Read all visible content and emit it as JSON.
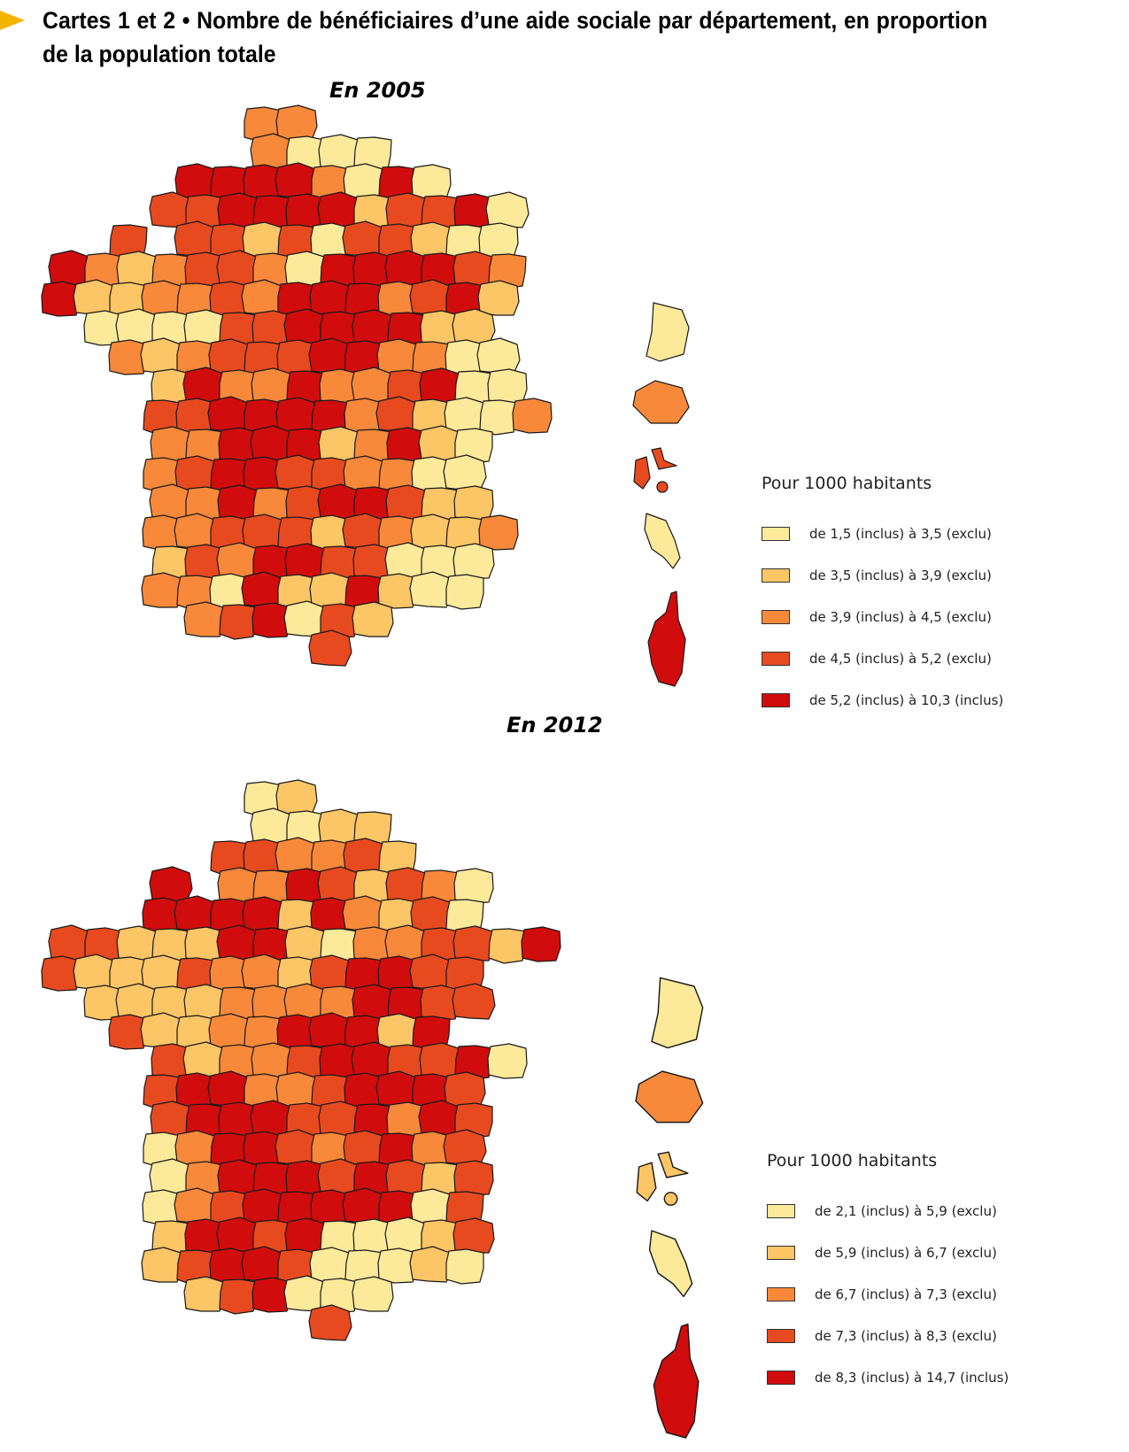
{
  "header": {
    "title": "Cartes 1 et 2 • Nombre de bénéficiaires d’une aide sociale par département, en proportion de la population totale",
    "arrow_color": "#f5b400"
  },
  "colors": [
    "#fde99a",
    "#fcc565",
    "#f8893a",
    "#e84a1f",
    "#d10c0c"
  ],
  "chart_data": [
    {
      "type": "choropleth",
      "title": "En 2005",
      "legend_title": "Pour 1000 habitants",
      "classes": [
        {
          "label": "de 1,5 (inclus) à 3,5 (exclu)",
          "min": 1.5,
          "max": 3.5,
          "color": "#fde99a"
        },
        {
          "label": "de 3,5 (inclus) à 3,9 (exclu)",
          "min": 3.5,
          "max": 3.9,
          "color": "#fcc565"
        },
        {
          "label": "de 3,9 (inclus) à 4,5 (exclu)",
          "min": 3.9,
          "max": 4.5,
          "color": "#f8893a"
        },
        {
          "label": "de 4,5 (inclus) à 5,2 (exclu)",
          "min": 4.5,
          "max": 5.2,
          "color": "#e84a1f"
        },
        {
          "label": "de 5,2 (inclus) à 10,3 (inclus)",
          "min": 5.2,
          "max": 10.3,
          "color": "#d10c0c"
        }
      ],
      "overseas": {
        "Guyane": 0,
        "La Réunion": 2,
        "Guadeloupe": 3,
        "Martinique": 0,
        "Corse": 4
      }
    },
    {
      "type": "choropleth",
      "title": "En 2012",
      "legend_title": "Pour 1000 habitants",
      "classes": [
        {
          "label": "de 2,1 (inclus) à 5,9 (exclu)",
          "min": 2.1,
          "max": 5.9,
          "color": "#fde99a"
        },
        {
          "label": "de 5,9 (inclus) à 6,7 (exclu)",
          "min": 5.9,
          "max": 6.7,
          "color": "#fcc565"
        },
        {
          "label": "de 6,7 (inclus) à 7,3 (exclu)",
          "min": 6.7,
          "max": 7.3,
          "color": "#f8893a"
        },
        {
          "label": "de 7,3 (inclus) à 8,3 (exclu)",
          "min": 7.3,
          "max": 8.3,
          "color": "#e84a1f"
        },
        {
          "label": "de 8,3 (inclus) à 14,7 (inclus)",
          "min": 8.3,
          "max": 14.7,
          "color": "#d10c0c"
        }
      ],
      "overseas": {
        "Guyane": 0,
        "La Réunion": 2,
        "Guadeloupe": 1,
        "Martinique": 0,
        "Corse": 4
      }
    }
  ],
  "maps": [
    {
      "grid": [
        "......22.........",
        "......2000.......",
        "....44442040.....",
        "...33444413340...",
        "..3.3313033100...",
        "42123320444432...",
        "41122324442341...",
        ".000033444411....",
        "..212333442200...",
        "...14224223400...",
        "...334444231002..",
        "...2244412410....",
        "...2344332200....",
        "...2242344311....",
        "...22333132112...",
        "...1324433000....",
        "...2204114100....",
        "....234031.......",
        "........3........"
      ]
    },
    {
      "grid": [
        "......01.........",
        "......0011.......",
        ".....332231......",
        "...4.22431320....",
        "...4444142130....",
        "331114410223314..",
        "3111322134433....",
        ".111122224433....",
        "..3112244414.....",
        "...31223443340...",
        "...3442234443....",
        "...3444334243....",
        "...0244323423....",
        "...0244434313....",
        "...0234444403....",
        "...1443400013....",
        "...1344300010....",
        "....134000.......",
        "........3........"
      ]
    }
  ]
}
